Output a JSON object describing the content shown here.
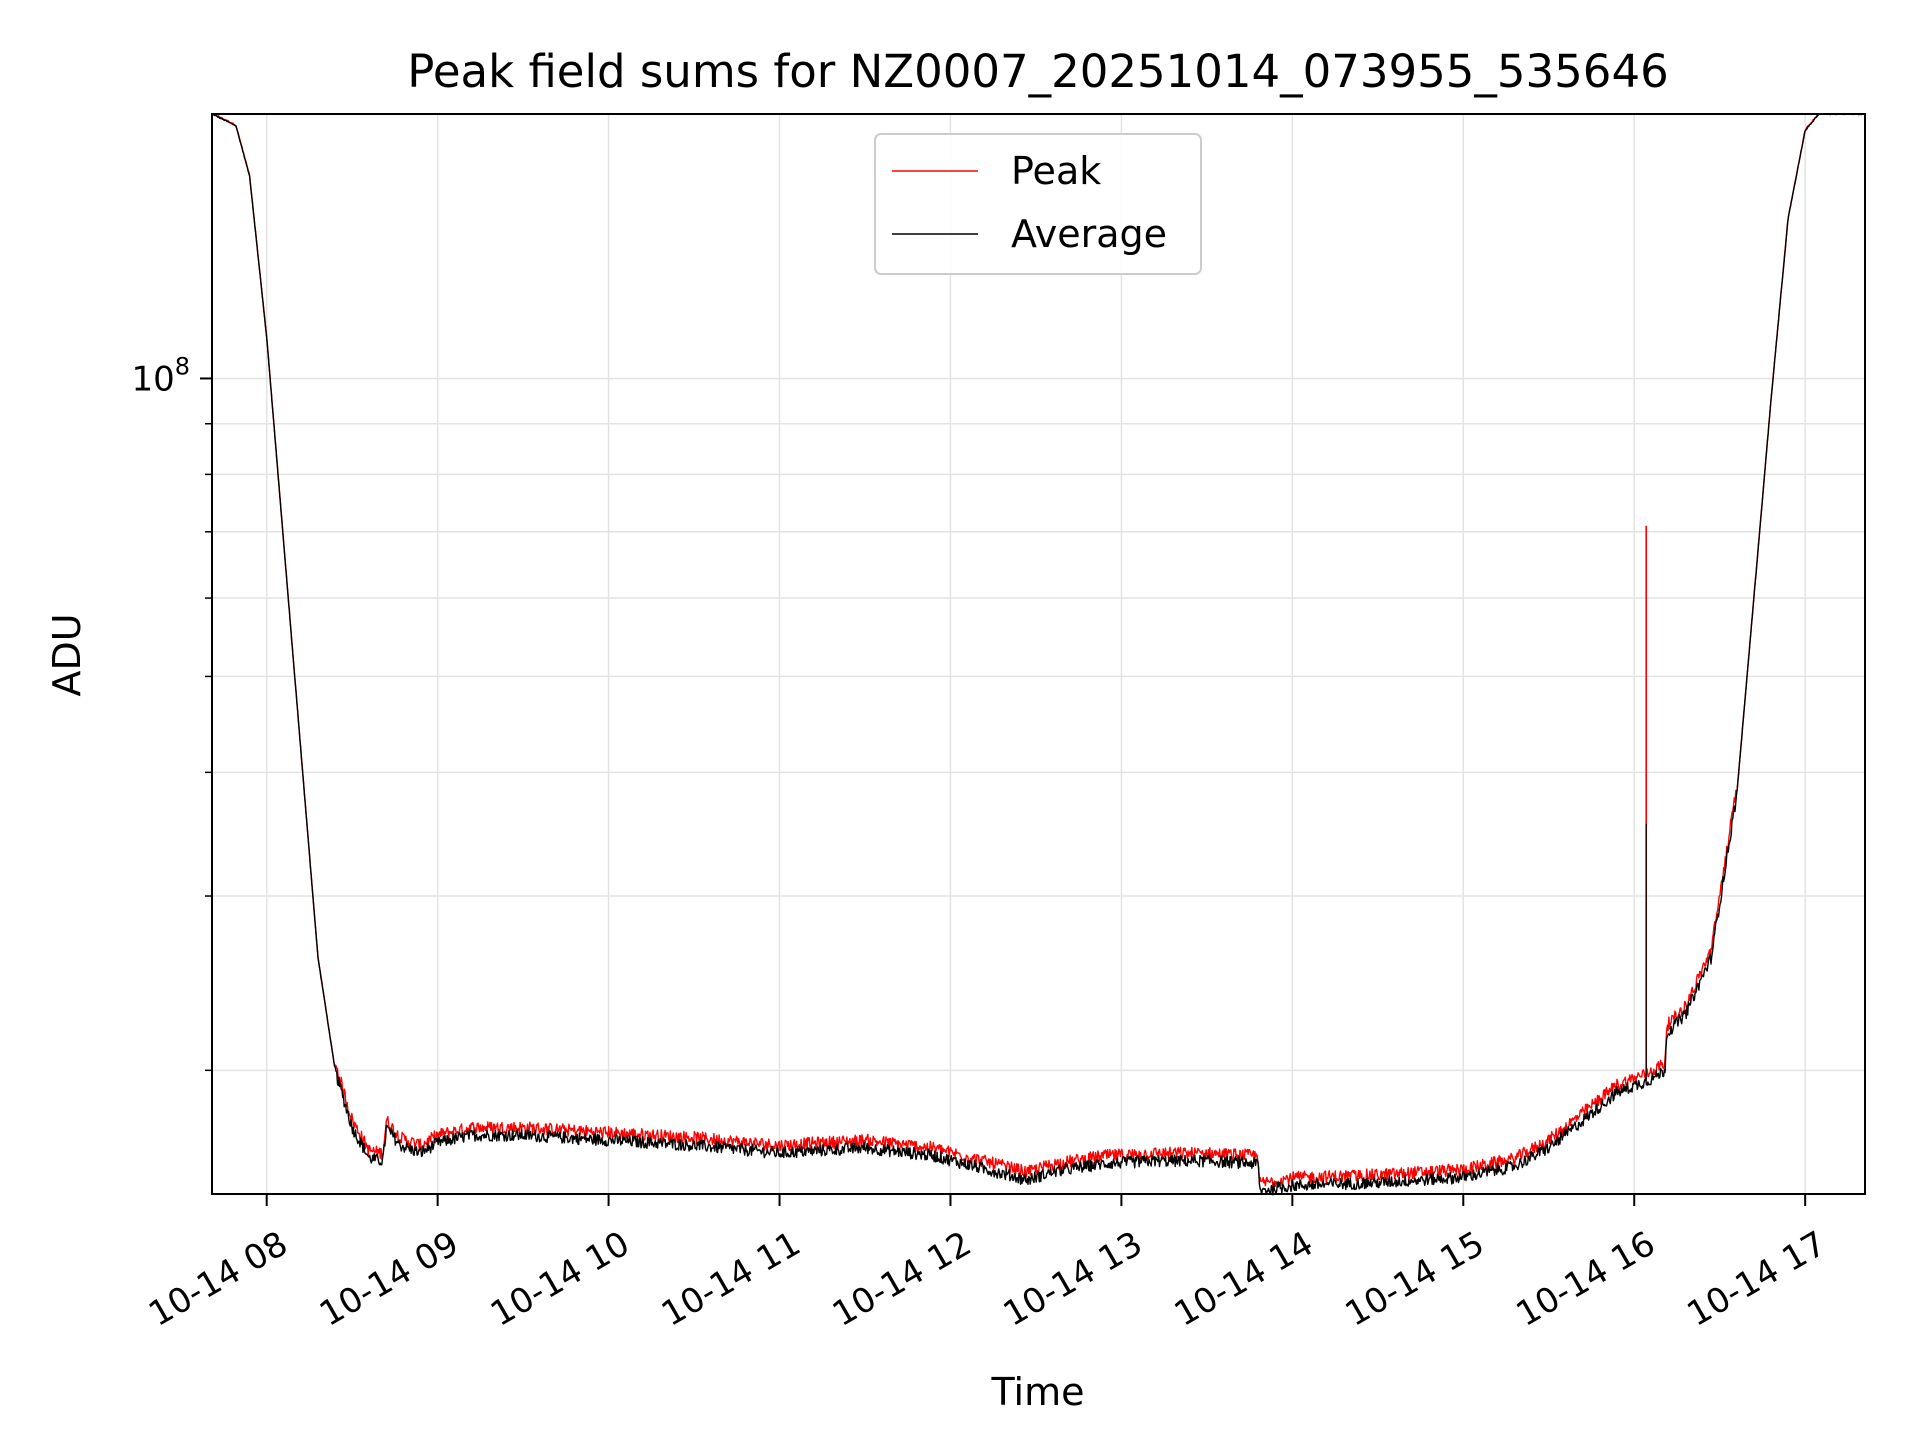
{
  "chart_data": {
    "type": "line",
    "title": "Peak field sums for NZ0007_20251014_073955_535646",
    "xlabel": "Time",
    "ylabel": "ADU",
    "yscale": "log",
    "ylim": [
      15000000,
      185000000
    ],
    "xlim_hours": [
      7.68,
      17.35
    ],
    "grid": true,
    "legend": {
      "position": "upper center",
      "entries": [
        "Peak",
        "Average"
      ]
    },
    "x_tick_labels": [
      "10-14 08",
      "10-14 09",
      "10-14 10",
      "10-14 11",
      "10-14 12",
      "10-14 13",
      "10-14 14",
      "10-14 15",
      "10-14 16",
      "10-14 17"
    ],
    "x_tick_hours": [
      8,
      9,
      10,
      11,
      12,
      13,
      14,
      15,
      16,
      17
    ],
    "y_major_ticks": [
      {
        "value": 100000000,
        "base": "10",
        "exp": "8"
      }
    ],
    "y_minor_ticks": [
      20000000,
      30000000,
      40000000,
      50000000,
      60000000,
      70000000,
      80000000,
      90000000
    ],
    "series": [
      {
        "name": "Average",
        "color": "#000000",
        "points_hours_adu": [
          [
            7.68,
            185000000
          ],
          [
            7.82,
            180000000
          ],
          [
            7.9,
            160000000
          ],
          [
            8.0,
            110000000
          ],
          [
            8.1,
            68000000
          ],
          [
            8.2,
            42000000
          ],
          [
            8.3,
            26000000
          ],
          [
            8.4,
            20000000
          ],
          [
            8.5,
            17500000
          ],
          [
            8.6,
            16300000
          ],
          [
            8.68,
            16200000
          ],
          [
            8.7,
            17500000
          ],
          [
            8.78,
            16800000
          ],
          [
            8.9,
            16500000
          ],
          [
            9.0,
            16900000
          ],
          [
            9.2,
            17200000
          ],
          [
            9.5,
            17200000
          ],
          [
            10.0,
            17000000
          ],
          [
            10.5,
            16800000
          ],
          [
            11.0,
            16500000
          ],
          [
            11.5,
            16700000
          ],
          [
            11.9,
            16400000
          ],
          [
            12.2,
            15900000
          ],
          [
            12.45,
            15500000
          ],
          [
            12.6,
            15800000
          ],
          [
            12.9,
            16100000
          ],
          [
            13.2,
            16200000
          ],
          [
            13.5,
            16200000
          ],
          [
            13.8,
            16100000
          ],
          [
            13.81,
            15100000
          ],
          [
            14.0,
            15300000
          ],
          [
            14.5,
            15400000
          ],
          [
            15.0,
            15600000
          ],
          [
            15.3,
            16000000
          ],
          [
            15.5,
            16700000
          ],
          [
            15.7,
            17800000
          ],
          [
            15.9,
            19000000
          ],
          [
            16.07,
            19500000
          ],
          [
            16.1,
            19600000
          ],
          [
            16.18,
            20000000
          ],
          [
            16.19,
            21800000
          ],
          [
            16.3,
            22800000
          ],
          [
            16.45,
            26000000
          ],
          [
            16.6,
            38000000
          ],
          [
            16.7,
            60000000
          ],
          [
            16.8,
            95000000
          ],
          [
            16.9,
            145000000
          ],
          [
            17.0,
            178000000
          ],
          [
            17.08,
            185000000
          ],
          [
            17.35,
            185000000
          ]
        ]
      },
      {
        "name": "Peak",
        "color": "#ff0000",
        "spike": {
          "hour": 16.07,
          "value": 71000000
        }
      }
    ]
  }
}
